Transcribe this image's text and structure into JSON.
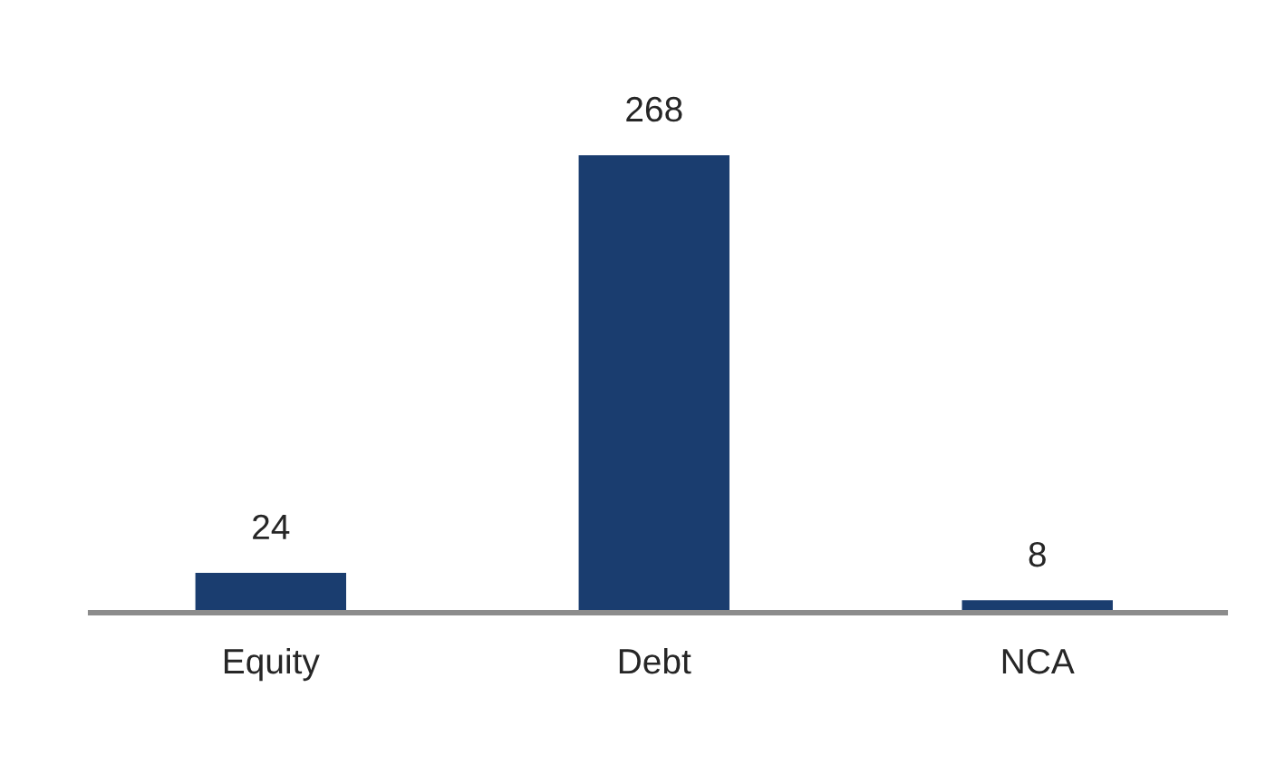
{
  "chart_data": {
    "type": "bar",
    "categories": [
      "Equity",
      "Debt",
      "NCA"
    ],
    "values": [
      24,
      268,
      8
    ],
    "color": "#1a3d6f",
    "data_labels": true,
    "grid": false,
    "legend": false
  }
}
